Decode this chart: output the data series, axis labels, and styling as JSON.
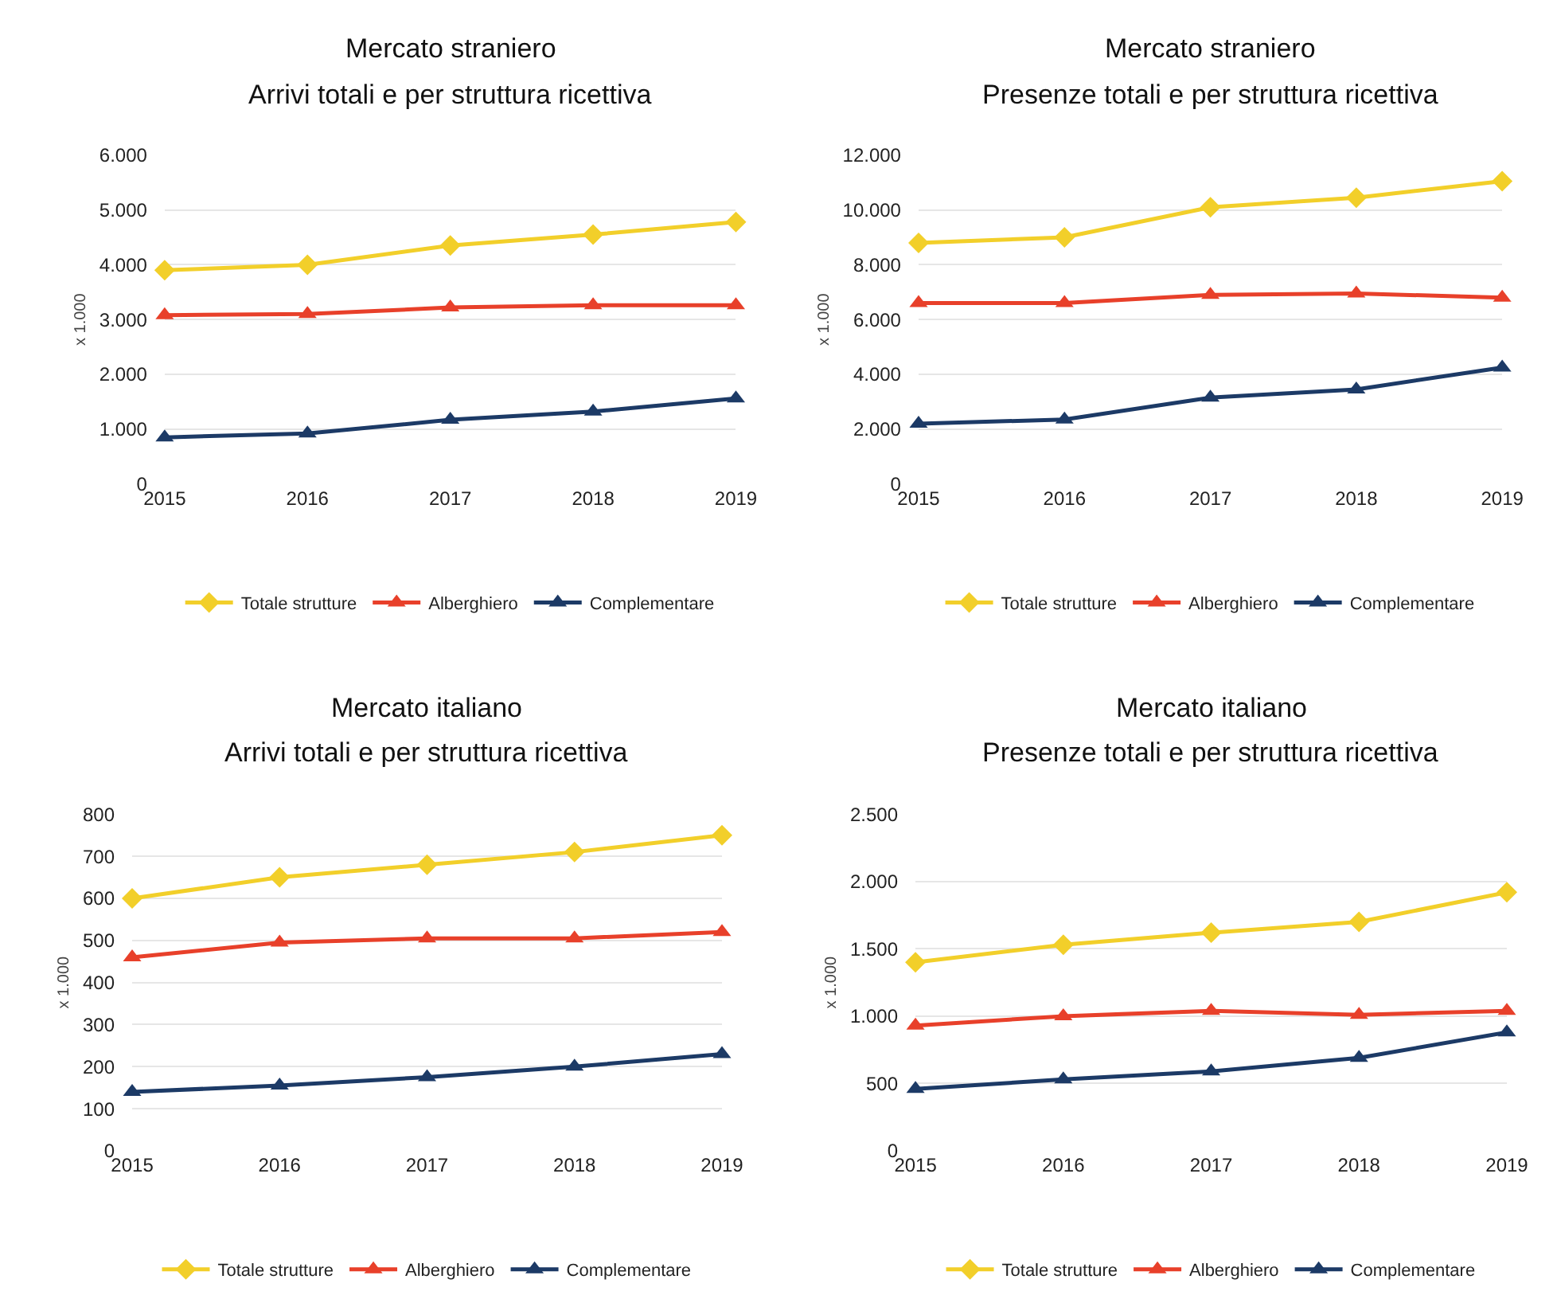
{
  "chart_data": [
    {
      "type": "line",
      "title": "Mercato straniero",
      "subtitle": "Arrivi totali e per struttura ricettiva",
      "ylabel": "x 1.000",
      "x": [
        2015,
        2016,
        2017,
        2018,
        2019
      ],
      "xlim": [
        2015,
        2019
      ],
      "xticks": [
        2015,
        2016,
        2017,
        2018,
        2019
      ],
      "ylim": [
        0,
        6000
      ],
      "yticks": [
        0,
        {
          "value": 1000,
          "label": "1.000"
        },
        {
          "value": 2000,
          "label": "2.000"
        },
        {
          "value": 3000,
          "label": "3.000"
        },
        {
          "value": 4000,
          "label": "4.000"
        },
        {
          "value": 5000,
          "label": "5.000"
        },
        {
          "value": 6000,
          "label": "6.000"
        }
      ],
      "grid": "y",
      "legend": "bottom",
      "line_style": "solid",
      "series": [
        {
          "name": "Totale strutture",
          "color": "#f2cf2a",
          "marker": "diamond",
          "values": [
            3900,
            4000,
            4350,
            4550,
            4780
          ]
        },
        {
          "name": "Alberghiero",
          "color": "#e8402a",
          "marker": "triangle",
          "values": [
            3080,
            3100,
            3220,
            3260,
            3260
          ]
        },
        {
          "name": "Complementare",
          "color": "#1c3a66",
          "marker": "triangle",
          "values": [
            850,
            920,
            1170,
            1320,
            1560
          ]
        }
      ]
    },
    {
      "type": "line",
      "title": "Mercato straniero",
      "subtitle": "Presenze totali e per struttura ricettiva",
      "ylabel": "x 1.000",
      "x": [
        2015,
        2016,
        2017,
        2018,
        2019
      ],
      "xlim": [
        2015,
        2019
      ],
      "xticks": [
        2015,
        2016,
        2017,
        2018,
        2019
      ],
      "ylim": [
        0,
        12000
      ],
      "yticks": [
        0,
        {
          "value": 2000,
          "label": "2.000"
        },
        {
          "value": 4000,
          "label": "4.000"
        },
        {
          "value": 6000,
          "label": "6.000"
        },
        {
          "value": 8000,
          "label": "8.000"
        },
        {
          "value": 10000,
          "label": "10.000"
        },
        {
          "value": 12000,
          "label": "12.000"
        }
      ],
      "grid": "y",
      "legend": "bottom",
      "line_style": "solid",
      "series": [
        {
          "name": "Totale strutture",
          "color": "#f2cf2a",
          "marker": "diamond",
          "values": [
            8800,
            9000,
            10100,
            10450,
            11050
          ]
        },
        {
          "name": "Alberghiero",
          "color": "#e8402a",
          "marker": "triangle",
          "values": [
            6600,
            6600,
            6900,
            6950,
            6800
          ]
        },
        {
          "name": "Complementare",
          "color": "#1c3a66",
          "marker": "triangle",
          "values": [
            2200,
            2350,
            3150,
            3450,
            4250
          ]
        }
      ]
    },
    {
      "type": "line",
      "title": "Mercato italiano",
      "subtitle": "Arrivi totali e per struttura ricettiva",
      "ylabel": "x 1.000",
      "x": [
        2015,
        2016,
        2017,
        2018,
        2019
      ],
      "xlim": [
        2015,
        2019
      ],
      "xticks": [
        2015,
        2016,
        2017,
        2018,
        2019
      ],
      "ylim": [
        0,
        800
      ],
      "yticks": [
        0,
        100,
        200,
        300,
        400,
        500,
        600,
        700,
        800
      ],
      "grid": "y",
      "legend": "bottom",
      "line_style": "solid",
      "series": [
        {
          "name": "Totale strutture",
          "color": "#f2cf2a",
          "marker": "diamond",
          "values": [
            600,
            650,
            680,
            710,
            750
          ]
        },
        {
          "name": "Alberghiero",
          "color": "#e8402a",
          "marker": "triangle",
          "values": [
            460,
            495,
            505,
            505,
            520
          ]
        },
        {
          "name": "Complementare",
          "color": "#1c3a66",
          "marker": "triangle",
          "values": [
            140,
            155,
            175,
            200,
            230
          ]
        }
      ]
    },
    {
      "type": "line",
      "title": "Mercato italiano",
      "subtitle": "Presenze totali e per struttura ricettiva",
      "ylabel": "x 1.000",
      "x": [
        2015,
        2016,
        2017,
        2018,
        2019
      ],
      "xlim": [
        2015,
        2019
      ],
      "xticks": [
        2015,
        2016,
        2017,
        2018,
        2019
      ],
      "ylim": [
        0,
        2500
      ],
      "yticks": [
        0,
        500,
        {
          "value": 1000,
          "label": "1.000"
        },
        {
          "value": 1500,
          "label": "1.500"
        },
        {
          "value": 2000,
          "label": "2.000"
        },
        {
          "value": 2500,
          "label": "2.500"
        }
      ],
      "grid": "y",
      "legend": "bottom",
      "line_style": "solid",
      "series": [
        {
          "name": "Totale strutture",
          "color": "#f2cf2a",
          "marker": "diamond",
          "values": [
            1400,
            1530,
            1620,
            1700,
            1920
          ]
        },
        {
          "name": "Alberghiero",
          "color": "#e8402a",
          "marker": "triangle",
          "values": [
            930,
            1000,
            1040,
            1010,
            1040
          ]
        },
        {
          "name": "Complementare",
          "color": "#1c3a66",
          "marker": "triangle",
          "values": [
            460,
            530,
            590,
            690,
            880
          ]
        }
      ]
    }
  ]
}
